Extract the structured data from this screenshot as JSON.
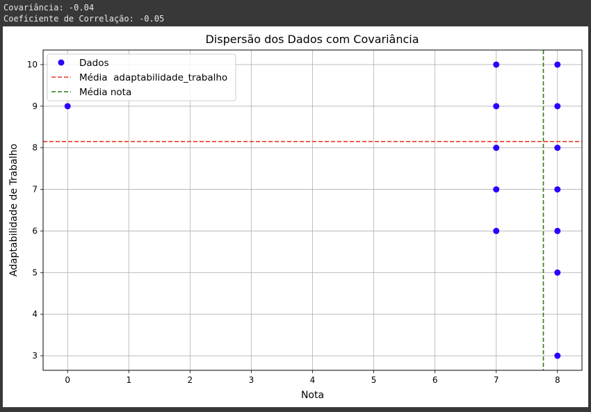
{
  "console": {
    "lines": [
      "Covariância: -0.04",
      "Coeficiente de Correlação: -0.05"
    ]
  },
  "chart_data": {
    "type": "scatter",
    "title": "Dispersão dos Dados com Covariância",
    "xlabel": "Nota",
    "ylabel": "Adaptabilidade de Trabalho",
    "xlim": [
      -0.4,
      8.4
    ],
    "ylim": [
      2.65,
      10.35
    ],
    "xticks": [
      0,
      1,
      2,
      3,
      4,
      5,
      6,
      7,
      8
    ],
    "yticks": [
      3,
      4,
      5,
      6,
      7,
      8,
      9,
      10
    ],
    "grid": true,
    "legend_position": "top-left",
    "series": [
      {
        "name": "Dados",
        "color": "#2a00ff",
        "x": [
          0,
          7,
          7,
          7,
          7,
          7,
          8,
          8,
          8,
          8,
          8,
          8,
          8
        ],
        "y": [
          9,
          10,
          9,
          8,
          7,
          6,
          10,
          9,
          8,
          7,
          6,
          5,
          3
        ]
      }
    ],
    "reference_lines": [
      {
        "name": "Média  adaptabilidade_trabalho",
        "orientation": "horizontal",
        "value": 8.15,
        "color": "#e8361a"
      },
      {
        "name": "Média nota",
        "orientation": "vertical",
        "value": 7.77,
        "color": "#2e7d0e"
      }
    ]
  }
}
